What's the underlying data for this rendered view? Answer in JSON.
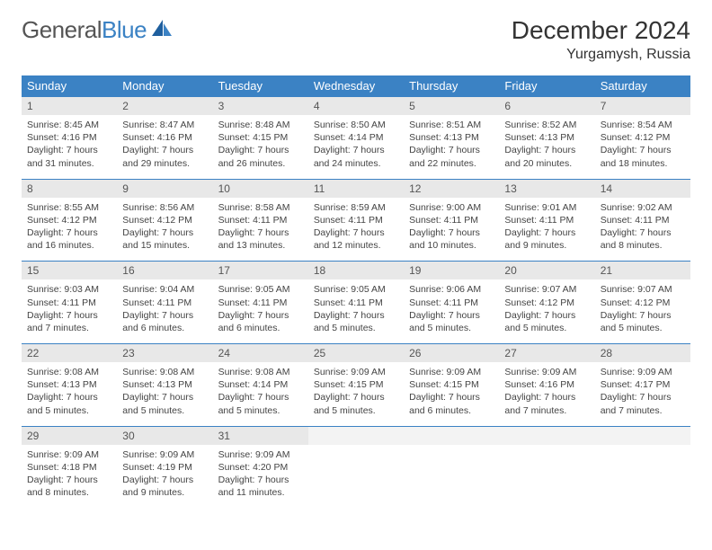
{
  "logo": {
    "text_gray": "General",
    "text_blue": "Blue"
  },
  "header": {
    "month": "December 2024",
    "location": "Yurgamysh, Russia"
  },
  "colors": {
    "header_bg": "#3b82c4",
    "header_text": "#ffffff",
    "daynum_bg": "#e8e8e8",
    "body_text": "#444444",
    "rule": "#3b82c4"
  },
  "day_names": [
    "Sunday",
    "Monday",
    "Tuesday",
    "Wednesday",
    "Thursday",
    "Friday",
    "Saturday"
  ],
  "weeks": [
    [
      {
        "n": "1",
        "sr": "Sunrise: 8:45 AM",
        "ss": "Sunset: 4:16 PM",
        "dl": "Daylight: 7 hours and 31 minutes."
      },
      {
        "n": "2",
        "sr": "Sunrise: 8:47 AM",
        "ss": "Sunset: 4:16 PM",
        "dl": "Daylight: 7 hours and 29 minutes."
      },
      {
        "n": "3",
        "sr": "Sunrise: 8:48 AM",
        "ss": "Sunset: 4:15 PM",
        "dl": "Daylight: 7 hours and 26 minutes."
      },
      {
        "n": "4",
        "sr": "Sunrise: 8:50 AM",
        "ss": "Sunset: 4:14 PM",
        "dl": "Daylight: 7 hours and 24 minutes."
      },
      {
        "n": "5",
        "sr": "Sunrise: 8:51 AM",
        "ss": "Sunset: 4:13 PM",
        "dl": "Daylight: 7 hours and 22 minutes."
      },
      {
        "n": "6",
        "sr": "Sunrise: 8:52 AM",
        "ss": "Sunset: 4:13 PM",
        "dl": "Daylight: 7 hours and 20 minutes."
      },
      {
        "n": "7",
        "sr": "Sunrise: 8:54 AM",
        "ss": "Sunset: 4:12 PM",
        "dl": "Daylight: 7 hours and 18 minutes."
      }
    ],
    [
      {
        "n": "8",
        "sr": "Sunrise: 8:55 AM",
        "ss": "Sunset: 4:12 PM",
        "dl": "Daylight: 7 hours and 16 minutes."
      },
      {
        "n": "9",
        "sr": "Sunrise: 8:56 AM",
        "ss": "Sunset: 4:12 PM",
        "dl": "Daylight: 7 hours and 15 minutes."
      },
      {
        "n": "10",
        "sr": "Sunrise: 8:58 AM",
        "ss": "Sunset: 4:11 PM",
        "dl": "Daylight: 7 hours and 13 minutes."
      },
      {
        "n": "11",
        "sr": "Sunrise: 8:59 AM",
        "ss": "Sunset: 4:11 PM",
        "dl": "Daylight: 7 hours and 12 minutes."
      },
      {
        "n": "12",
        "sr": "Sunrise: 9:00 AM",
        "ss": "Sunset: 4:11 PM",
        "dl": "Daylight: 7 hours and 10 minutes."
      },
      {
        "n": "13",
        "sr": "Sunrise: 9:01 AM",
        "ss": "Sunset: 4:11 PM",
        "dl": "Daylight: 7 hours and 9 minutes."
      },
      {
        "n": "14",
        "sr": "Sunrise: 9:02 AM",
        "ss": "Sunset: 4:11 PM",
        "dl": "Daylight: 7 hours and 8 minutes."
      }
    ],
    [
      {
        "n": "15",
        "sr": "Sunrise: 9:03 AM",
        "ss": "Sunset: 4:11 PM",
        "dl": "Daylight: 7 hours and 7 minutes."
      },
      {
        "n": "16",
        "sr": "Sunrise: 9:04 AM",
        "ss": "Sunset: 4:11 PM",
        "dl": "Daylight: 7 hours and 6 minutes."
      },
      {
        "n": "17",
        "sr": "Sunrise: 9:05 AM",
        "ss": "Sunset: 4:11 PM",
        "dl": "Daylight: 7 hours and 6 minutes."
      },
      {
        "n": "18",
        "sr": "Sunrise: 9:05 AM",
        "ss": "Sunset: 4:11 PM",
        "dl": "Daylight: 7 hours and 5 minutes."
      },
      {
        "n": "19",
        "sr": "Sunrise: 9:06 AM",
        "ss": "Sunset: 4:11 PM",
        "dl": "Daylight: 7 hours and 5 minutes."
      },
      {
        "n": "20",
        "sr": "Sunrise: 9:07 AM",
        "ss": "Sunset: 4:12 PM",
        "dl": "Daylight: 7 hours and 5 minutes."
      },
      {
        "n": "21",
        "sr": "Sunrise: 9:07 AM",
        "ss": "Sunset: 4:12 PM",
        "dl": "Daylight: 7 hours and 5 minutes."
      }
    ],
    [
      {
        "n": "22",
        "sr": "Sunrise: 9:08 AM",
        "ss": "Sunset: 4:13 PM",
        "dl": "Daylight: 7 hours and 5 minutes."
      },
      {
        "n": "23",
        "sr": "Sunrise: 9:08 AM",
        "ss": "Sunset: 4:13 PM",
        "dl": "Daylight: 7 hours and 5 minutes."
      },
      {
        "n": "24",
        "sr": "Sunrise: 9:08 AM",
        "ss": "Sunset: 4:14 PM",
        "dl": "Daylight: 7 hours and 5 minutes."
      },
      {
        "n": "25",
        "sr": "Sunrise: 9:09 AM",
        "ss": "Sunset: 4:15 PM",
        "dl": "Daylight: 7 hours and 5 minutes."
      },
      {
        "n": "26",
        "sr": "Sunrise: 9:09 AM",
        "ss": "Sunset: 4:15 PM",
        "dl": "Daylight: 7 hours and 6 minutes."
      },
      {
        "n": "27",
        "sr": "Sunrise: 9:09 AM",
        "ss": "Sunset: 4:16 PM",
        "dl": "Daylight: 7 hours and 7 minutes."
      },
      {
        "n": "28",
        "sr": "Sunrise: 9:09 AM",
        "ss": "Sunset: 4:17 PM",
        "dl": "Daylight: 7 hours and 7 minutes."
      }
    ],
    [
      {
        "n": "29",
        "sr": "Sunrise: 9:09 AM",
        "ss": "Sunset: 4:18 PM",
        "dl": "Daylight: 7 hours and 8 minutes."
      },
      {
        "n": "30",
        "sr": "Sunrise: 9:09 AM",
        "ss": "Sunset: 4:19 PM",
        "dl": "Daylight: 7 hours and 9 minutes."
      },
      {
        "n": "31",
        "sr": "Sunrise: 9:09 AM",
        "ss": "Sunset: 4:20 PM",
        "dl": "Daylight: 7 hours and 11 minutes."
      },
      {
        "empty": true
      },
      {
        "empty": true
      },
      {
        "empty": true
      },
      {
        "empty": true
      }
    ]
  ]
}
